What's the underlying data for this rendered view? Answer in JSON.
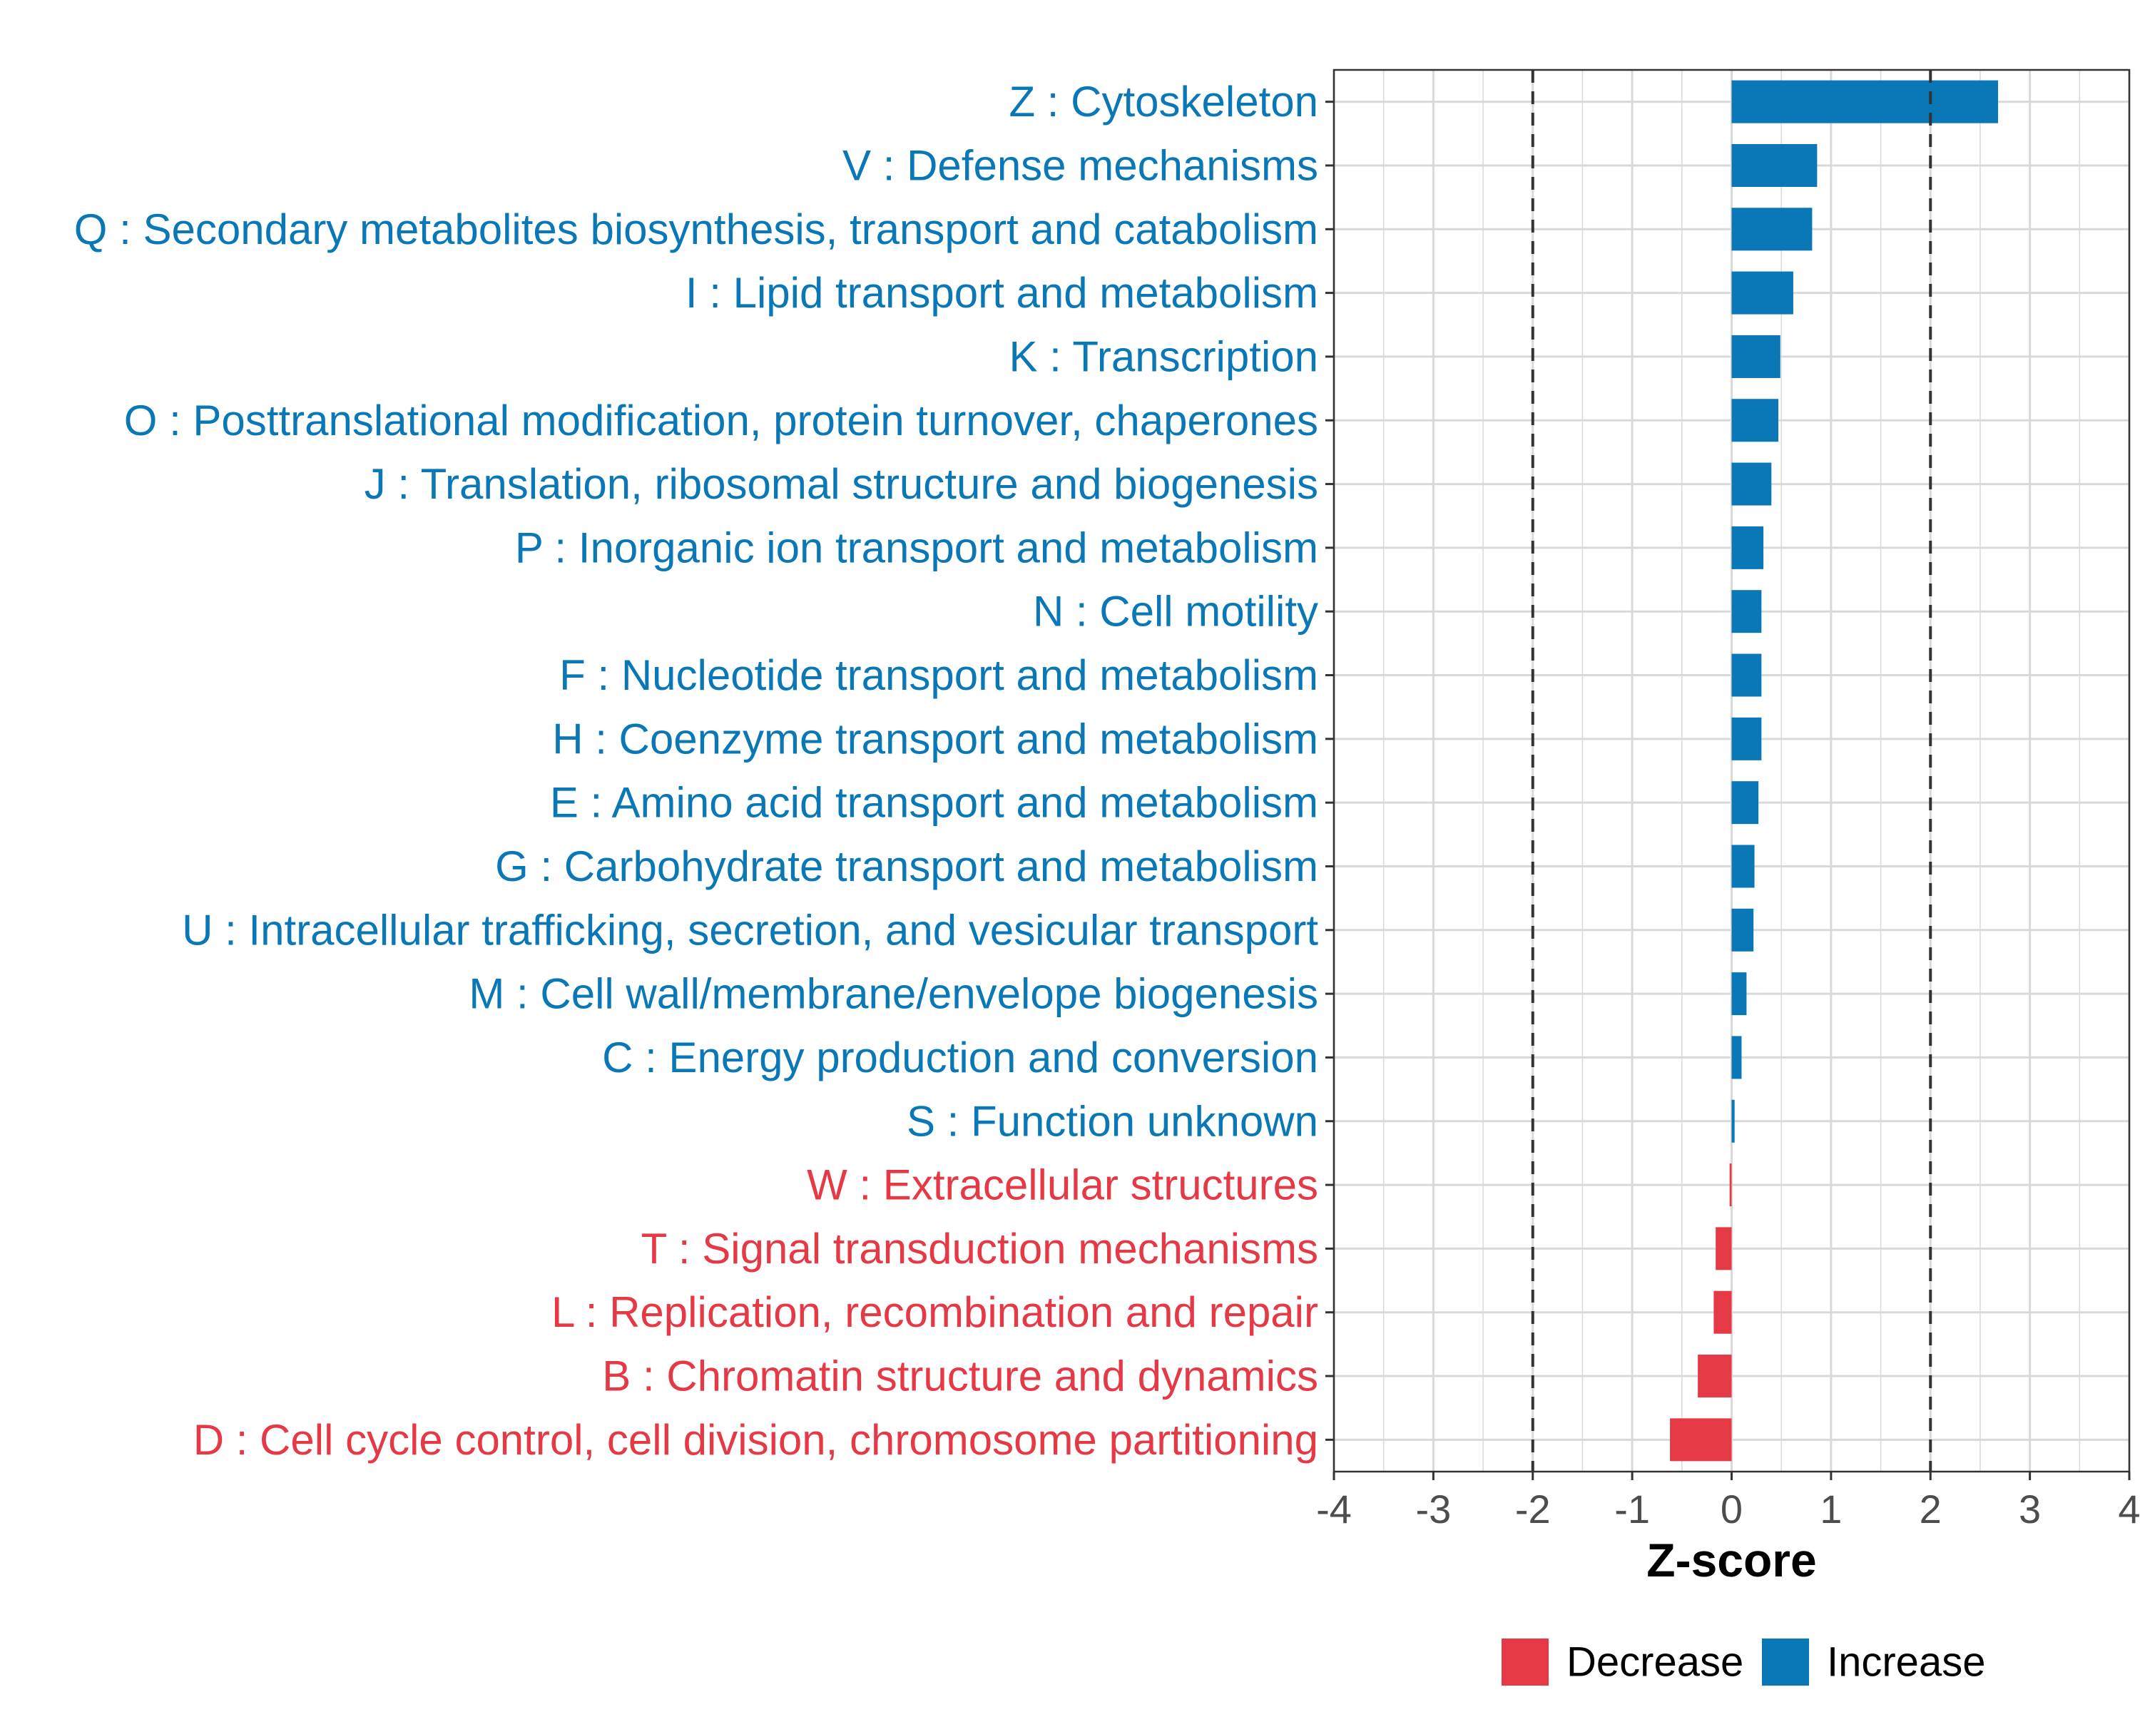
{
  "chart_data": {
    "type": "bar",
    "orientation": "horizontal",
    "title": "",
    "xlabel": "Z-score",
    "ylabel": "",
    "xlim": [
      -4,
      4
    ],
    "x_ticks": [
      -4,
      -3,
      -2,
      -1,
      0,
      1,
      2,
      3,
      4
    ],
    "x_tick_labels": [
      "-4",
      "-3",
      "-2",
      "-1",
      "0",
      "1",
      "2",
      "3",
      "4"
    ],
    "reference_lines": [
      -2,
      2
    ],
    "grid": true,
    "colors": {
      "Decrease": "#e63946",
      "Increase": "#0a77b6"
    },
    "categories": [
      "Z : Cytoskeleton",
      "V : Defense mechanisms",
      "Q : Secondary metabolites biosynthesis, transport and catabolism",
      "I : Lipid transport and metabolism",
      "K : Transcription",
      "O : Posttranslational modification, protein turnover, chaperones",
      "J : Translation, ribosomal structure and biogenesis",
      "P : Inorganic ion transport and metabolism",
      "N : Cell motility",
      "F : Nucleotide transport and metabolism",
      "H : Coenzyme transport and metabolism",
      "E : Amino acid transport and metabolism",
      "G : Carbohydrate transport and metabolism",
      "U : Intracellular trafficking, secretion, and vesicular transport",
      "M : Cell wall/membrane/envelope biogenesis",
      "C : Energy production and conversion",
      "S : Function unknown",
      "W : Extracellular structures",
      "T : Signal transduction mechanisms",
      "L : Replication, recombination and repair",
      "B : Chromatin structure and dynamics",
      "D : Cell cycle control, cell division, chromosome partitioning"
    ],
    "values": [
      2.68,
      0.86,
      0.81,
      0.62,
      0.49,
      0.47,
      0.4,
      0.32,
      0.3,
      0.3,
      0.3,
      0.27,
      0.23,
      0.22,
      0.15,
      0.1,
      0.03,
      -0.02,
      -0.16,
      -0.18,
      -0.34,
      -0.62
    ],
    "legend": {
      "position": "bottom",
      "entries": [
        {
          "name": "Decrease",
          "color": "#e63946"
        },
        {
          "name": "Increase",
          "color": "#0a77b6"
        }
      ]
    }
  }
}
